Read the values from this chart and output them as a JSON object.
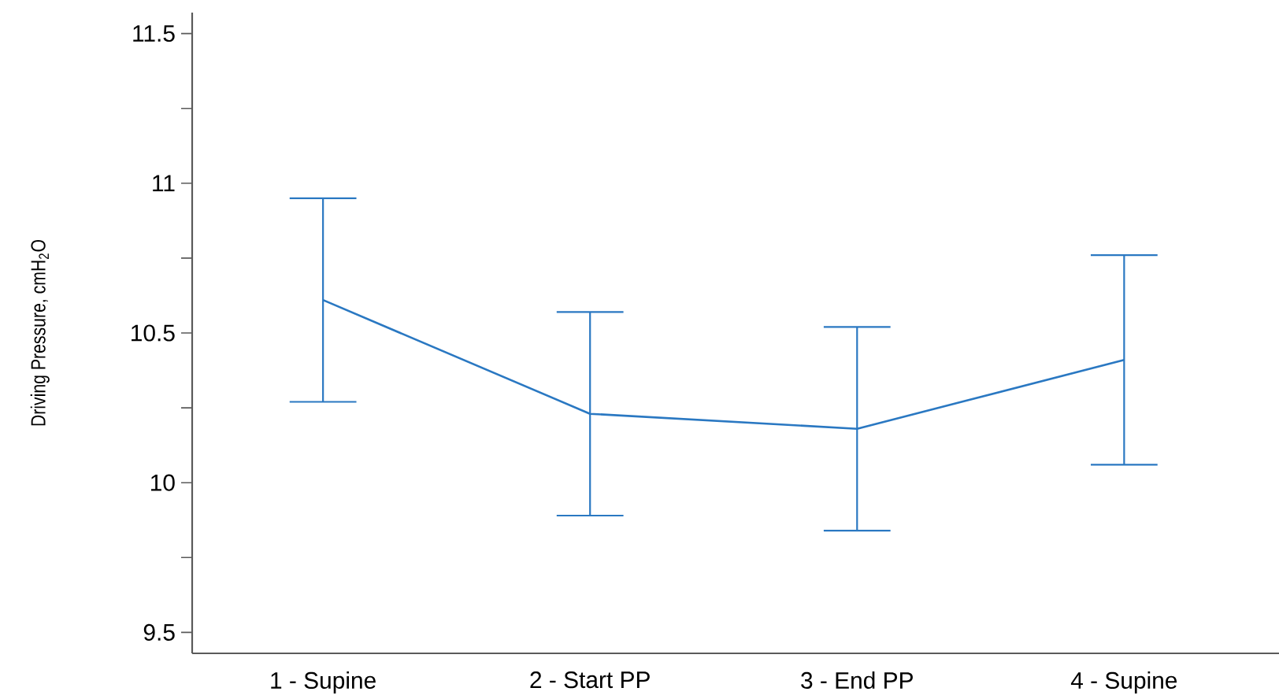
{
  "chart_data": {
    "type": "line",
    "ylabel": "Driving Pressure, cmH$_{2}$O",
    "categories": [
      "1 - Supine",
      "2 - Start PP",
      "3 - End PP",
      "4 - Supine"
    ],
    "series": [
      {
        "color": "#2a78c2",
        "values": [
          10.61,
          10.23,
          10.18,
          10.41
        ],
        "errors": [
          0.34,
          0.34,
          0.34,
          0.35
        ]
      }
    ],
    "ylim": [
      9.43,
      11.57
    ],
    "yticks": [
      9.5,
      {
        "value": 9.75,
        "label": null
      },
      10,
      {
        "value": 10.25,
        "label": null
      },
      10.5,
      {
        "value": 10.75,
        "label": null
      },
      11,
      {
        "value": 11.25,
        "label": null
      },
      11.5
    ]
  }
}
